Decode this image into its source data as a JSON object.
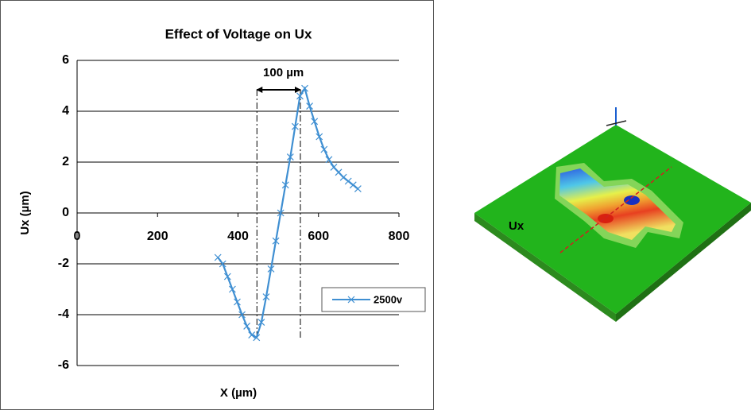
{
  "chart_data": {
    "type": "line",
    "title": "Effect of Voltage on Ux",
    "x_label": "X (µm)",
    "y_label": "Ux (µm)",
    "x": [
      350,
      362,
      374,
      386,
      398,
      410,
      422,
      434,
      446,
      458,
      470,
      482,
      494,
      506,
      518,
      530,
      542,
      554,
      566,
      578,
      590,
      602,
      614,
      626,
      638,
      650,
      662,
      674,
      686,
      698
    ],
    "series": [
      {
        "name": "2500v",
        "color": "#3f8fd2",
        "values": [
          -1.75,
          -2.0,
          -2.5,
          -3.0,
          -3.5,
          -4.0,
          -4.45,
          -4.8,
          -4.9,
          -4.3,
          -3.3,
          -2.2,
          -1.1,
          0.0,
          1.1,
          2.2,
          3.4,
          4.6,
          4.9,
          4.2,
          3.6,
          3.0,
          2.5,
          2.1,
          1.8,
          1.6,
          1.4,
          1.25,
          1.1,
          0.95
        ]
      }
    ],
    "xlim": [
      0,
      800
    ],
    "xticks": [
      0,
      200,
      400,
      600,
      800
    ],
    "ylim": [
      -6,
      6
    ],
    "yticks": [
      -6,
      -4,
      -2,
      0,
      2,
      4,
      6
    ],
    "grid": true,
    "legend": "right",
    "annotation": {
      "text": "100 µm",
      "x": [
        447,
        555
      ]
    }
  },
  "figure": {
    "label": "Ux"
  }
}
